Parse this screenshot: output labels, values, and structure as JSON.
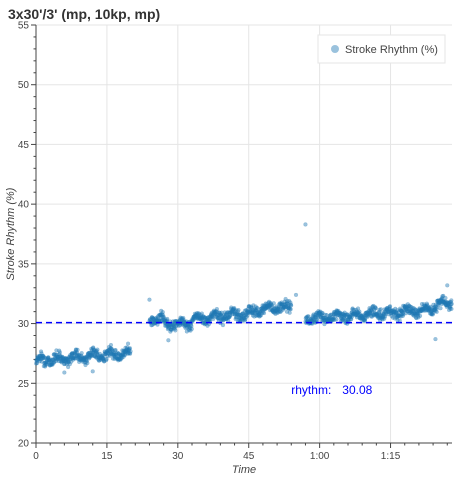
{
  "chart_data": {
    "type": "scatter",
    "title": "3x30'/3' (mp, 10kp, mp)",
    "xlabel": "Time",
    "ylabel": "Stroke Rhythm (%)",
    "xlim": [
      0,
      88
    ],
    "ylim": [
      20,
      55
    ],
    "x_unit": "minutes",
    "x_ticks": [
      0,
      15,
      30,
      45,
      60,
      75
    ],
    "x_tick_labels": [
      "0",
      "15",
      "30",
      "45",
      "1:00",
      "1:15"
    ],
    "y_ticks": [
      20,
      25,
      30,
      35,
      40,
      45,
      50,
      55
    ],
    "y_tick_labels": [
      "20",
      "25",
      "30",
      "35",
      "40",
      "45",
      "50",
      "55"
    ],
    "grid": true,
    "legend_position": "top-right",
    "series": [
      {
        "name": "Stroke Rhythm (%)",
        "color": "#1f77b4",
        "segments": [
          {
            "x_range": [
              0,
              20
            ],
            "level_start": 26.9,
            "level_end": 27.6
          },
          {
            "x_range": [
              24,
              27
            ],
            "level_start": 30.5,
            "level_end": 30.3
          },
          {
            "x_range": [
              27,
              33
            ],
            "level_start": 30.0,
            "level_end": 30.0
          },
          {
            "x_range": [
              33,
              42
            ],
            "level_start": 30.3,
            "level_end": 30.8
          },
          {
            "x_range": [
              42,
              48
            ],
            "level_start": 30.6,
            "level_end": 31.2
          },
          {
            "x_range": [
              48,
              54
            ],
            "level_start": 31.2,
            "level_end": 31.4
          },
          {
            "x_range": [
              57,
              84
            ],
            "level_start": 30.4,
            "level_end": 31.2
          },
          {
            "x_range": [
              84,
              88
            ],
            "level_start": 31.5,
            "level_end": 31.8
          }
        ],
        "outliers": [
          {
            "x": 57.0,
            "y": 38.3
          },
          {
            "x": 24.0,
            "y": 32.0
          },
          {
            "x": 28.0,
            "y": 28.6
          },
          {
            "x": 84.5,
            "y": 28.7
          },
          {
            "x": 87.0,
            "y": 33.2
          },
          {
            "x": 55.0,
            "y": 32.4
          },
          {
            "x": 6.0,
            "y": 25.9
          },
          {
            "x": 12.0,
            "y": 26.0
          }
        ]
      }
    ],
    "reference_line": {
      "y": 30.08,
      "color": "#0000ff",
      "style": "dashed"
    },
    "annotation": {
      "label": "rhythm:",
      "value": "30.08",
      "x": 54,
      "y": 24.1,
      "color": "#0000ff"
    }
  }
}
